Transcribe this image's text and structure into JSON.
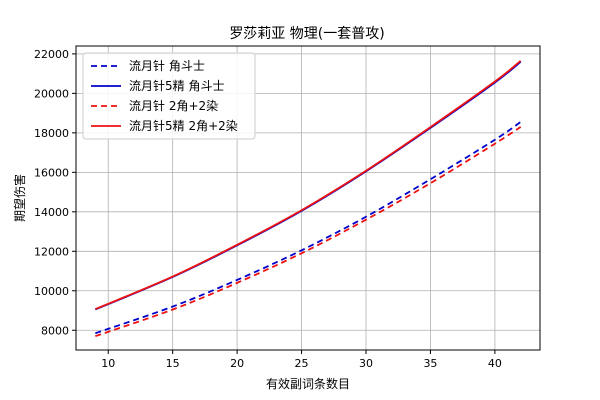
{
  "chart_data": {
    "type": "line",
    "title": "罗莎莉亚 物理(一套普攻)",
    "xlabel": "有效副词条数目",
    "ylabel": "期望伤害",
    "xlim": [
      7.5,
      43.5
    ],
    "ylim": [
      7000,
      22400
    ],
    "xticks": [
      10,
      15,
      20,
      25,
      30,
      35,
      40
    ],
    "yticks": [
      8000,
      10000,
      12000,
      14000,
      16000,
      18000,
      20000,
      22000
    ],
    "grid": true,
    "legend_position": "top-left",
    "x": [
      9,
      15,
      20,
      25,
      30,
      35,
      40,
      42
    ],
    "series": [
      {
        "name": "流月针 角斗士",
        "color": "#0000cc",
        "dash": true,
        "values": [
          7850,
          9200,
          10550,
          12050,
          13750,
          15650,
          17650,
          18550
        ]
      },
      {
        "name": "流月针5精 角斗士",
        "color": "#0000cc",
        "dash": false,
        "values": [
          9050,
          10700,
          12300,
          14050,
          16050,
          18250,
          20550,
          21600
        ]
      },
      {
        "name": "流月针 2角+2染",
        "color": "#ee1111",
        "dash": true,
        "values": [
          7700,
          9050,
          10400,
          11900,
          13600,
          15450,
          17450,
          18300
        ]
      },
      {
        "name": "流月针5精 2角+2染",
        "color": "#ee1111",
        "dash": false,
        "values": [
          9070,
          10720,
          12330,
          14080,
          16080,
          18290,
          20600,
          21650
        ]
      }
    ]
  }
}
